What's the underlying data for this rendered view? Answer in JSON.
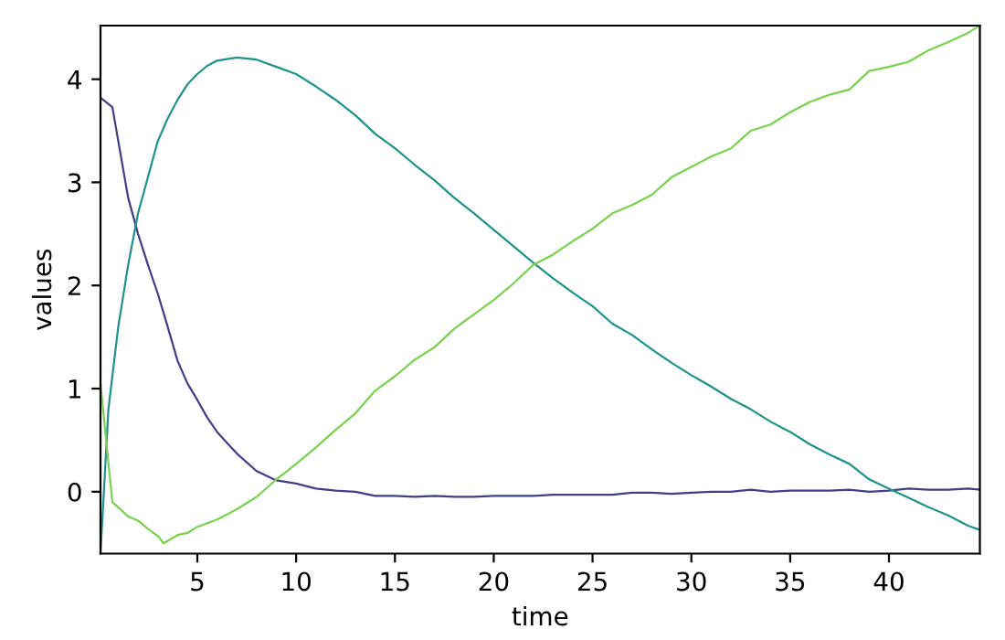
{
  "chart_data": {
    "type": "line",
    "xlabel": "time",
    "ylabel": "values",
    "xlim": [
      0.1,
      44.6
    ],
    "ylim": [
      -0.6,
      4.52
    ],
    "xticks": [
      5,
      10,
      15,
      20,
      25,
      30,
      35,
      40
    ],
    "yticks": [
      0,
      1,
      2,
      3,
      4
    ],
    "grid": false,
    "legend": false,
    "series": [
      {
        "color": "#433e85",
        "x": [
          0.1,
          0.7,
          1.5,
          2,
          2.5,
          3,
          3.5,
          4,
          4.5,
          5,
          5.5,
          6,
          7,
          8,
          9,
          10,
          11,
          12,
          13,
          14,
          15,
          16,
          17,
          18,
          19,
          20,
          21,
          22,
          23,
          24,
          25,
          26,
          27,
          28,
          29,
          30,
          31,
          32,
          33,
          34,
          35,
          36,
          37,
          38,
          39,
          40,
          41,
          42,
          43,
          44,
          44.6
        ],
        "values": [
          3.82,
          3.73,
          2.85,
          2.5,
          2.2,
          1.92,
          1.6,
          1.27,
          1.05,
          0.89,
          0.72,
          0.58,
          0.37,
          0.2,
          0.11,
          0.08,
          0.03,
          0.01,
          0.0,
          -0.04,
          -0.04,
          -0.05,
          -0.04,
          -0.05,
          -0.05,
          -0.04,
          -0.04,
          -0.04,
          -0.03,
          -0.03,
          -0.03,
          -0.03,
          -0.01,
          -0.01,
          -0.02,
          -0.01,
          0.0,
          0.0,
          0.02,
          0.0,
          0.01,
          0.01,
          0.01,
          0.02,
          0.0,
          0.01,
          0.03,
          0.02,
          0.02,
          0.03,
          0.02
        ]
      },
      {
        "color": "#21918c",
        "x": [
          0.1,
          0.5,
          1,
          1.5,
          2,
          2.5,
          3,
          3.5,
          4,
          4.5,
          5,
          5.5,
          6,
          7,
          8,
          9,
          10,
          11,
          12,
          13,
          14,
          15,
          16,
          17,
          18,
          19,
          20,
          21,
          22,
          23,
          24,
          25,
          26,
          27,
          28,
          29,
          30,
          31,
          32,
          33,
          34,
          35,
          36,
          37,
          38,
          39,
          40,
          41,
          42,
          43,
          44,
          44.6
        ],
        "values": [
          -0.6,
          0.8,
          1.6,
          2.2,
          2.7,
          3.05,
          3.4,
          3.62,
          3.8,
          3.95,
          4.05,
          4.13,
          4.18,
          4.21,
          4.19,
          4.12,
          4.05,
          3.93,
          3.8,
          3.65,
          3.47,
          3.33,
          3.17,
          3.02,
          2.85,
          2.7,
          2.54,
          2.38,
          2.22,
          2.07,
          1.93,
          1.8,
          1.63,
          1.52,
          1.38,
          1.25,
          1.13,
          1.02,
          0.9,
          0.8,
          0.68,
          0.58,
          0.46,
          0.36,
          0.27,
          0.12,
          0.03,
          -0.06,
          -0.15,
          -0.23,
          -0.33,
          -0.37
        ]
      },
      {
        "color": "#7ad151",
        "x": [
          0.1,
          0.7,
          1.5,
          2,
          2.5,
          3,
          3.3,
          4,
          4.5,
          5,
          6,
          7,
          8,
          9,
          10,
          11,
          12,
          13,
          14,
          15,
          16,
          17,
          18,
          19,
          20,
          21,
          22,
          23,
          24,
          25,
          26,
          27,
          28,
          29,
          30,
          31,
          32,
          33,
          34,
          35,
          36,
          37,
          38,
          39,
          40,
          41,
          42,
          43,
          44,
          44.6
        ],
        "values": [
          1.05,
          -0.1,
          -0.24,
          -0.28,
          -0.36,
          -0.43,
          -0.5,
          -0.42,
          -0.4,
          -0.34,
          -0.27,
          -0.17,
          -0.05,
          0.12,
          0.27,
          0.43,
          0.6,
          0.76,
          0.98,
          1.12,
          1.28,
          1.4,
          1.58,
          1.72,
          1.86,
          2.02,
          2.2,
          2.3,
          2.43,
          2.55,
          2.7,
          2.78,
          2.88,
          3.05,
          3.15,
          3.25,
          3.33,
          3.5,
          3.56,
          3.68,
          3.78,
          3.85,
          3.9,
          4.08,
          4.12,
          4.17,
          4.28,
          4.36,
          4.45,
          4.52
        ]
      }
    ]
  }
}
